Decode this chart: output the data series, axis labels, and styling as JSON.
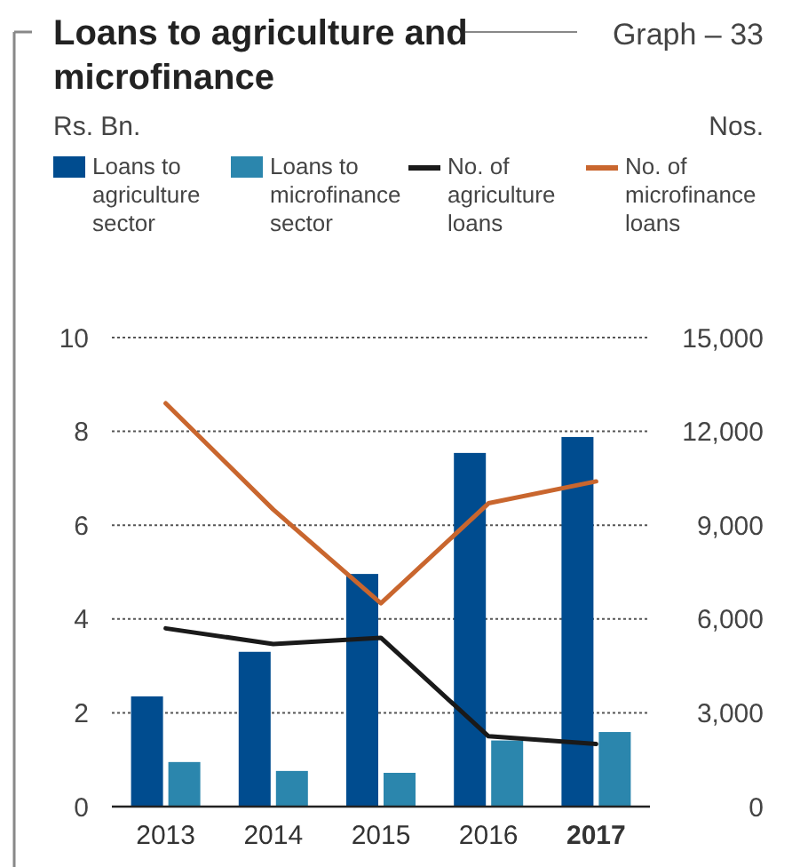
{
  "chart_data": {
    "type": "bar",
    "title": "Loans to agriculture and microfinance",
    "annotations": [
      "Graph – 33",
      "Rs. Bn.",
      "Nos."
    ],
    "categories": [
      "2013",
      "2014",
      "2015",
      "2016",
      "2017"
    ],
    "series": [
      {
        "name": "Loans to agriculture sector",
        "color": "#004c8f",
        "values": [
          2.35,
          3.3,
          4.96,
          7.54,
          7.88
        ]
      },
      {
        "name": "Loans to microfinance sector",
        "color": "#2b86ad",
        "values": [
          0.95,
          0.76,
          0.72,
          1.41,
          1.59
        ]
      },
      {
        "name": "No. of agriculture loans",
        "type": "line",
        "axis": "y2",
        "color": "#1a1a1a",
        "values": [
          5700,
          5200,
          5400,
          2250,
          2000
        ]
      },
      {
        "name": "No. of microfinance loans",
        "type": "line",
        "axis": "y2",
        "color": "#c9662e",
        "values": [
          12900,
          9500,
          6500,
          9700,
          10400
        ]
      }
    ],
    "ylim": [
      0,
      10
    ],
    "yticks": [
      0,
      2,
      4,
      6,
      8,
      10
    ],
    "y2lim": [
      0,
      15000
    ],
    "y2ticks": [
      0,
      {
        "value": 3000,
        "label": "3,000"
      },
      {
        "value": 6000,
        "label": "6,000"
      },
      {
        "value": 9000,
        "label": "9,000"
      },
      {
        "value": 12000,
        "label": "12,000"
      },
      {
        "value": 15000,
        "label": "15,000"
      }
    ],
    "grid": "y",
    "legend": "top"
  }
}
